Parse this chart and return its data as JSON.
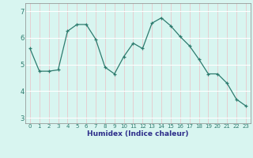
{
  "x": [
    0,
    1,
    2,
    3,
    4,
    5,
    6,
    7,
    8,
    9,
    10,
    11,
    12,
    13,
    14,
    15,
    16,
    17,
    18,
    19,
    20,
    21,
    22,
    23
  ],
  "y": [
    5.6,
    4.75,
    4.75,
    4.8,
    6.25,
    6.5,
    6.5,
    5.95,
    4.9,
    4.65,
    5.3,
    5.8,
    5.6,
    6.55,
    6.75,
    6.45,
    6.05,
    5.7,
    5.2,
    4.65,
    4.65,
    4.3,
    3.7,
    3.45
  ],
  "xlabel": "Humidex (Indice chaleur)",
  "ylim": [
    2.8,
    7.3
  ],
  "xlim": [
    -0.5,
    23.5
  ],
  "yticks": [
    3,
    4,
    5,
    6,
    7
  ],
  "xticks": [
    0,
    1,
    2,
    3,
    4,
    5,
    6,
    7,
    8,
    9,
    10,
    11,
    12,
    13,
    14,
    15,
    16,
    17,
    18,
    19,
    20,
    21,
    22,
    23
  ],
  "line_color": "#2d7b6e",
  "marker_color": "#2d7b6e",
  "bg_color": "#d8f5f0",
  "grid_white_color": "#ffffff",
  "grid_pink_color": "#e8c8cc",
  "xlabel_color": "#2d2d8a",
  "tick_color": "#2d7b6e"
}
